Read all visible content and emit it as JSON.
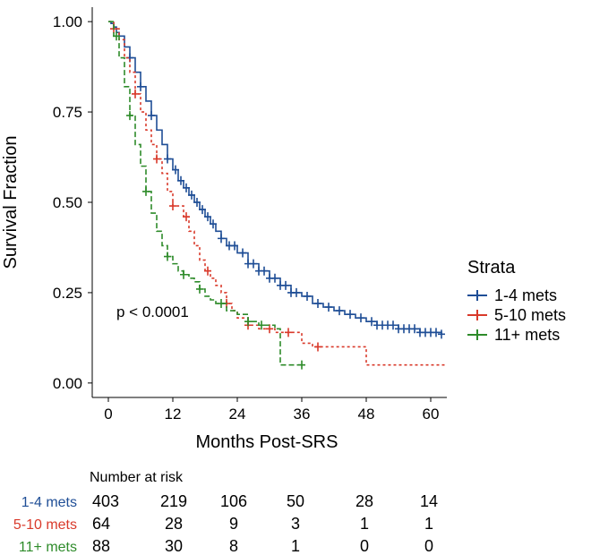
{
  "chart_data": {
    "type": "line",
    "subtype": "kaplan-meier",
    "xlabel": "Months Post-SRS",
    "ylabel": "Survival Fraction",
    "xlim": [
      -3,
      63
    ],
    "ylim": [
      -0.04,
      1.04
    ],
    "xticks": [
      0,
      12,
      24,
      36,
      48,
      60
    ],
    "yticks": [
      "0.00",
      "0.25",
      "0.50",
      "0.75",
      "1.00"
    ],
    "annotation": "p < 0.0001",
    "legend": {
      "title": "Strata",
      "position": "right"
    },
    "series": [
      {
        "name": "1-4 mets",
        "color": "#1f4e96",
        "dash": "solid",
        "x": [
          0,
          0.5,
          1,
          1.5,
          2,
          3,
          4,
          5,
          6,
          7,
          8,
          9,
          10,
          11,
          12,
          13,
          14,
          15,
          16,
          17,
          18,
          19,
          20,
          21,
          22,
          24,
          26,
          28,
          30,
          32,
          34,
          36,
          38,
          40,
          42,
          44,
          46,
          48,
          50,
          52,
          54,
          56,
          58,
          60,
          62
        ],
        "y": [
          1.0,
          0.995,
          0.985,
          0.97,
          0.96,
          0.93,
          0.9,
          0.86,
          0.82,
          0.78,
          0.74,
          0.7,
          0.66,
          0.62,
          0.59,
          0.56,
          0.54,
          0.52,
          0.5,
          0.48,
          0.46,
          0.44,
          0.42,
          0.4,
          0.38,
          0.36,
          0.33,
          0.31,
          0.29,
          0.27,
          0.25,
          0.24,
          0.22,
          0.21,
          0.2,
          0.19,
          0.18,
          0.17,
          0.16,
          0.16,
          0.15,
          0.15,
          0.14,
          0.14,
          0.135
        ],
        "censor_x": [
          4,
          6,
          8,
          11,
          12.5,
          13.5,
          14.5,
          15.5,
          16.5,
          17.5,
          18.5,
          19.5,
          21,
          22.5,
          23.5,
          25,
          26,
          27,
          28,
          29,
          30,
          31,
          32,
          33,
          34,
          35,
          37,
          39,
          41,
          43,
          45,
          47,
          49,
          50,
          51,
          52,
          53,
          54,
          55,
          56,
          57,
          58,
          59,
          60,
          61,
          62
        ]
      },
      {
        "name": "5-10 mets",
        "color": "#d93a2b",
        "dash": "3,3",
        "x": [
          0,
          1,
          2,
          3,
          4,
          5,
          6,
          7,
          8,
          9,
          10,
          11,
          12,
          14,
          15,
          16,
          17,
          18,
          19,
          20,
          21,
          22,
          23,
          24,
          26,
          28,
          30,
          31,
          32,
          34,
          36,
          38,
          40,
          42,
          44,
          46,
          48,
          50,
          55,
          60,
          63
        ],
        "y": [
          1.0,
          0.98,
          0.95,
          0.9,
          0.86,
          0.8,
          0.75,
          0.7,
          0.66,
          0.62,
          0.58,
          0.53,
          0.49,
          0.46,
          0.42,
          0.38,
          0.34,
          0.31,
          0.29,
          0.27,
          0.25,
          0.22,
          0.2,
          0.18,
          0.16,
          0.15,
          0.15,
          0.14,
          0.14,
          0.14,
          0.11,
          0.1,
          0.1,
          0.1,
          0.1,
          0.1,
          0.05,
          0.05,
          0.05,
          0.05,
          0.05
        ],
        "censor_x": [
          1,
          5,
          9,
          12,
          14.5,
          18.5,
          22,
          26,
          30,
          33.5,
          39
        ]
      },
      {
        "name": "11+ mets",
        "color": "#2e8b2a",
        "dash": "6,3",
        "x": [
          0,
          1,
          2,
          3,
          4,
          5,
          6,
          7,
          8,
          9,
          10,
          11,
          12,
          13,
          14,
          15,
          16,
          17,
          18,
          19,
          20,
          22,
          24,
          26,
          28,
          30,
          31,
          32,
          33,
          36
        ],
        "y": [
          1.0,
          0.96,
          0.9,
          0.82,
          0.74,
          0.66,
          0.6,
          0.53,
          0.47,
          0.42,
          0.38,
          0.35,
          0.33,
          0.31,
          0.3,
          0.29,
          0.28,
          0.26,
          0.24,
          0.23,
          0.22,
          0.2,
          0.19,
          0.17,
          0.16,
          0.16,
          0.15,
          0.05,
          0.05,
          0.05
        ],
        "censor_x": [
          1.5,
          4,
          7,
          11,
          14,
          17,
          21,
          26,
          28.5,
          36
        ]
      }
    ],
    "risk_table": {
      "header": "Number at risk",
      "timepoints": [
        0,
        12,
        24,
        36,
        48,
        60
      ],
      "rows": [
        {
          "label": "1-4 mets",
          "color": "#1f4e96",
          "values": [
            "403",
            "219",
            "106",
            "50",
            "28",
            "14"
          ]
        },
        {
          "label": "5-10 mets",
          "color": "#d93a2b",
          "values": [
            "64",
            "28",
            "9",
            "3",
            "1",
            "1"
          ]
        },
        {
          "label": "11+ mets",
          "color": "#2e8b2a",
          "values": [
            "88",
            "30",
            "8",
            "1",
            "0",
            "0"
          ]
        }
      ]
    }
  }
}
